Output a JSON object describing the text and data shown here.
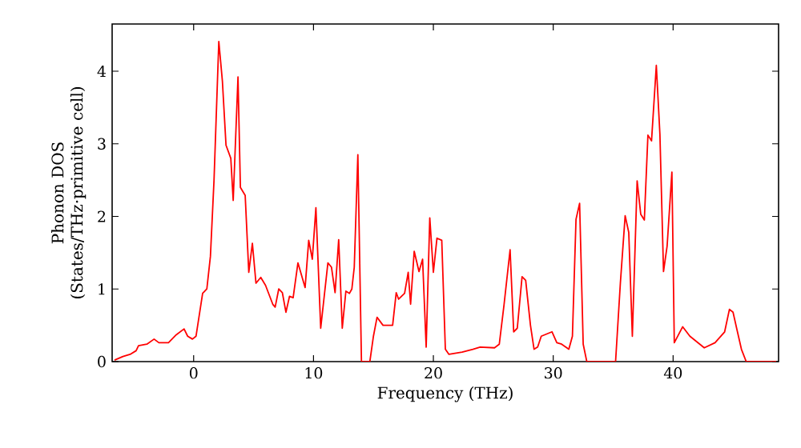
{
  "chart_data": {
    "type": "line",
    "xlabel": "Frequency (THz)",
    "ylabel": "Phonon DOS (States/THz·primitive cell)",
    "xlim": [
      -6.8,
      48.8
    ],
    "ylim": [
      0,
      4.65
    ],
    "xticks": [
      0,
      10,
      20,
      30,
      40
    ],
    "yticks": [
      0,
      1,
      2,
      3,
      4
    ],
    "grid": false,
    "marker": "none",
    "line_style": "solid",
    "series": [
      {
        "color": "#ff0000",
        "x": [
          -6.6,
          -5.9,
          -5.3,
          -4.8,
          -4.6,
          -3.9,
          -3.3,
          -2.9,
          -2.1,
          -1.45,
          -0.8,
          -0.5,
          -0.1,
          0.2,
          0.75,
          1.1,
          1.4,
          1.7,
          2.1,
          2.4,
          2.7,
          3.1,
          3.3,
          3.7,
          3.9,
          4.3,
          4.6,
          4.9,
          5.2,
          5.6,
          6.0,
          6.6,
          6.8,
          7.1,
          7.4,
          7.7,
          8.0,
          8.3,
          8.7,
          9.3,
          9.6,
          9.9,
          10.2,
          10.6,
          11.2,
          11.5,
          11.8,
          12.1,
          12.4,
          12.7,
          13.0,
          13.2,
          13.4,
          13.7,
          14.0,
          14.7,
          15.0,
          15.3,
          15.8,
          16.6,
          16.9,
          17.1,
          17.6,
          17.9,
          18.1,
          18.4,
          18.8,
          19.1,
          19.4,
          19.7,
          20.0,
          20.3,
          20.7,
          21.0,
          21.3,
          22.4,
          23.3,
          23.9,
          25.1,
          25.5,
          25.9,
          26.4,
          26.7,
          27.0,
          27.4,
          27.7,
          28.1,
          28.4,
          28.7,
          29.0,
          29.9,
          30.3,
          30.7,
          31.3,
          31.6,
          31.9,
          32.2,
          32.5,
          32.8,
          35.2,
          35.6,
          36.0,
          36.3,
          36.6,
          37.0,
          37.3,
          37.6,
          37.9,
          38.2,
          38.6,
          38.9,
          39.2,
          39.5,
          39.9,
          40.1,
          40.8,
          41.4,
          42.6,
          43.5,
          44.3,
          44.7,
          45.0,
          45.3,
          45.7,
          46.1,
          48.6
        ],
        "values": [
          0.02,
          0.07,
          0.1,
          0.15,
          0.22,
          0.24,
          0.31,
          0.26,
          0.26,
          0.37,
          0.45,
          0.35,
          0.31,
          0.35,
          0.94,
          1.0,
          1.45,
          2.5,
          4.41,
          3.86,
          2.98,
          2.8,
          2.22,
          3.92,
          2.4,
          2.29,
          1.23,
          1.63,
          1.08,
          1.16,
          1.05,
          0.79,
          0.75,
          1.0,
          0.95,
          0.68,
          0.9,
          0.88,
          1.36,
          1.02,
          1.67,
          1.41,
          2.12,
          0.46,
          1.36,
          1.3,
          0.95,
          1.68,
          0.46,
          0.97,
          0.94,
          1.0,
          1.3,
          2.85,
          0.0,
          0.0,
          0.35,
          0.61,
          0.5,
          0.5,
          0.95,
          0.86,
          0.94,
          1.23,
          0.79,
          1.52,
          1.24,
          1.41,
          0.2,
          1.98,
          1.23,
          1.7,
          1.67,
          0.17,
          0.1,
          0.13,
          0.17,
          0.2,
          0.19,
          0.24,
          0.79,
          1.54,
          0.41,
          0.46,
          1.17,
          1.12,
          0.5,
          0.17,
          0.2,
          0.35,
          0.41,
          0.26,
          0.24,
          0.17,
          0.35,
          1.96,
          2.18,
          0.24,
          0.0,
          0.0,
          1.08,
          2.01,
          1.78,
          0.35,
          2.49,
          2.03,
          1.95,
          3.12,
          3.04,
          4.08,
          3.13,
          1.24,
          1.59,
          2.61,
          0.26,
          0.48,
          0.35,
          0.19,
          0.26,
          0.41,
          0.72,
          0.68,
          0.46,
          0.17,
          0.0,
          0.0
        ]
      }
    ]
  }
}
